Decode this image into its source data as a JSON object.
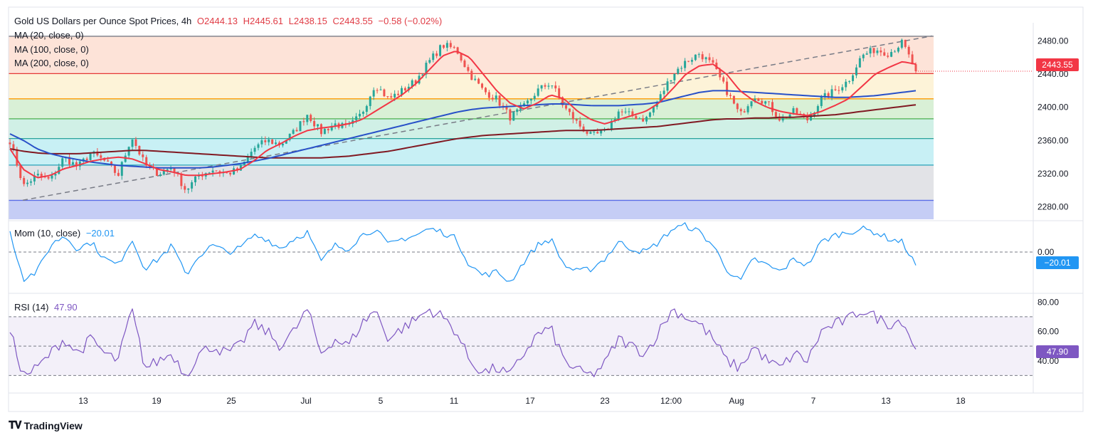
{
  "header": {
    "symbol": "Gold US Dollars per Ounce Spot Prices, 4h",
    "open": "O2444.13",
    "high": "H2445.61",
    "low": "L2438.15",
    "close": "C2443.55",
    "change": "−0.58 (−0.02%)"
  },
  "indicators": {
    "ma20": "MA (20, close, 0)",
    "ma100": "MA (100, close, 0)",
    "ma200": "MA (200, close, 0)",
    "mom_label": "Mom (10, close)",
    "mom_value": "−20.01",
    "rsi_label": "RSI (14)",
    "rsi_value": "47.90"
  },
  "badges": {
    "price": "2443.55",
    "mom": "−20.01",
    "rsi": "47.90"
  },
  "branding": {
    "name": "TradingView"
  },
  "colors": {
    "up": "#26a69a",
    "down": "#ef5350",
    "ma20": "#f23645",
    "ma100": "#2850c8",
    "ma200": "#801922",
    "mom": "#2196f3",
    "rsi": "#7e57c2",
    "price_badge": "#f23645",
    "mom_badge": "#2196f3",
    "rsi_badge": "#7e57c2"
  },
  "chart_data": {
    "type": "candlestick",
    "timeframe": "4h",
    "x_ticks": [
      "13",
      "19",
      "25",
      "Jul",
      "5",
      "11",
      "17",
      "23",
      "12:00",
      "Aug",
      "7",
      "13",
      "18"
    ],
    "price_axis": {
      "ticks": [
        2480,
        2440,
        2400,
        2360,
        2320,
        2280
      ],
      "ylim": [
        2265,
        2495
      ]
    },
    "mom_axis": {
      "ticks": [
        0
      ],
      "ylim": [
        -60,
        45
      ]
    },
    "rsi_axis": {
      "ticks": [
        80,
        60,
        40
      ],
      "ylim": [
        20,
        85
      ]
    },
    "fibonacci_levels": [
      2287.8,
      2330.3,
      2362.3,
      2386.1,
      2410.2,
      2440.6,
      2485.6
    ],
    "trendline": {
      "from": 2288,
      "to": 2486
    },
    "anchors": {
      "close": [
        2360,
        2305,
        2318,
        2312,
        2340,
        2328,
        2345,
        2335,
        2318,
        2365,
        2330,
        2320,
        2328,
        2300,
        2318,
        2325,
        2320,
        2325,
        2350,
        2360,
        2355,
        2370,
        2392,
        2370,
        2380,
        2375,
        2392,
        2428,
        2410,
        2420,
        2432,
        2455,
        2475,
        2470,
        2440,
        2420,
        2410,
        2388,
        2400,
        2420,
        2430,
        2400,
        2380,
        2365,
        2370,
        2395,
        2390,
        2385,
        2410,
        2440,
        2455,
        2465,
        2450,
        2420,
        2390,
        2415,
        2405,
        2385,
        2395,
        2385,
        2410,
        2420,
        2432,
        2462,
        2470,
        2465,
        2478,
        2443.55
      ],
      "ma20": [
        2350,
        2325,
        2315,
        2318,
        2326,
        2330,
        2335,
        2338,
        2340,
        2338,
        2332,
        2325,
        2322,
        2318,
        2318,
        2320,
        2322,
        2325,
        2335,
        2348,
        2356,
        2365,
        2372,
        2375,
        2377,
        2380,
        2385,
        2395,
        2405,
        2415,
        2428,
        2445,
        2462,
        2468,
        2460,
        2440,
        2420,
        2405,
        2398,
        2405,
        2415,
        2410,
        2395,
        2385,
        2380,
        2385,
        2390,
        2395,
        2405,
        2422,
        2440,
        2450,
        2452,
        2440,
        2420,
        2408,
        2400,
        2395,
        2392,
        2390,
        2395,
        2402,
        2410,
        2425,
        2440,
        2448,
        2455,
        2452
      ],
      "ma100": [
        2368,
        2360,
        2350,
        2344,
        2340,
        2337,
        2334,
        2332,
        2330,
        2329,
        2328,
        2327,
        2327,
        2327,
        2327,
        2328,
        2330,
        2332,
        2335,
        2338,
        2342,
        2346,
        2350,
        2354,
        2358,
        2362,
        2366,
        2370,
        2374,
        2378,
        2382,
        2386,
        2390,
        2394,
        2397,
        2399,
        2400,
        2401,
        2402,
        2403,
        2404,
        2404,
        2403,
        2402,
        2402,
        2402,
        2403,
        2404,
        2406,
        2410,
        2414,
        2418,
        2420,
        2420,
        2419,
        2418,
        2417,
        2416,
        2415,
        2414,
        2413,
        2412,
        2412,
        2413,
        2414,
        2416,
        2418,
        2420
      ],
      "ma200": [
        2350,
        2347,
        2345,
        2344,
        2344,
        2344,
        2345,
        2346,
        2347,
        2348,
        2348,
        2347,
        2346,
        2345,
        2344,
        2343,
        2342,
        2341,
        2340,
        2339,
        2339,
        2339,
        2339,
        2339,
        2340,
        2341,
        2343,
        2345,
        2347,
        2350,
        2353,
        2356,
        2359,
        2362,
        2364,
        2366,
        2367,
        2368,
        2369,
        2370,
        2371,
        2372,
        2372,
        2372,
        2373,
        2374,
        2375,
        2376,
        2377,
        2379,
        2381,
        2383,
        2385,
        2386,
        2386,
        2387,
        2387,
        2388,
        2388,
        2389,
        2390,
        2391,
        2393,
        2395,
        2397,
        2399,
        2401,
        2403
      ],
      "mom": [
        30,
        -40,
        -30,
        10,
        25,
        5,
        15,
        -10,
        -20,
        20,
        -25,
        -10,
        10,
        -35,
        -5,
        10,
        0,
        5,
        25,
        20,
        5,
        20,
        30,
        -15,
        10,
        5,
        25,
        35,
        10,
        20,
        25,
        35,
        30,
        20,
        -20,
        -35,
        -30,
        -45,
        -15,
        10,
        20,
        -20,
        -30,
        -25,
        -10,
        15,
        5,
        0,
        15,
        35,
        40,
        30,
        10,
        -25,
        -45,
        -10,
        -20,
        -30,
        -10,
        -20,
        15,
        25,
        30,
        35,
        30,
        20,
        15,
        -20.01
      ],
      "rsi": [
        60,
        30,
        35,
        45,
        55,
        45,
        55,
        45,
        40,
        75,
        35,
        40,
        45,
        30,
        45,
        50,
        45,
        50,
        65,
        60,
        50,
        60,
        75,
        45,
        55,
        50,
        65,
        75,
        55,
        62,
        68,
        75,
        70,
        60,
        40,
        32,
        35,
        30,
        45,
        58,
        62,
        40,
        33,
        30,
        38,
        55,
        50,
        45,
        60,
        75,
        70,
        65,
        55,
        40,
        35,
        50,
        40,
        35,
        45,
        40,
        60,
        65,
        68,
        75,
        70,
        65,
        68,
        47.9
      ]
    }
  }
}
